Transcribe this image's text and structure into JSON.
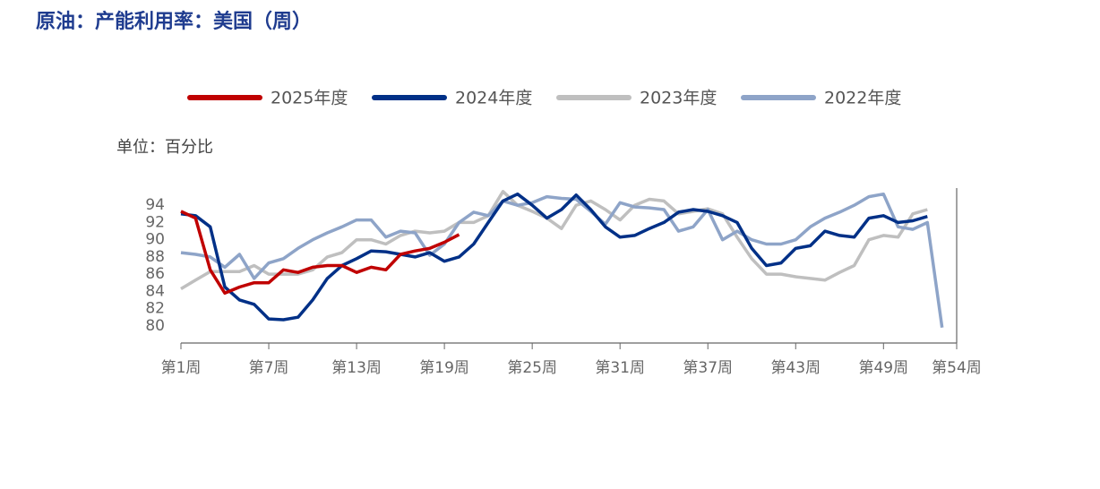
{
  "chart_data": {
    "type": "line",
    "title": "原油：产能利用率：美国（周）",
    "unit_label": "单位：百分比",
    "x": [
      1,
      2,
      3,
      4,
      5,
      6,
      7,
      8,
      9,
      10,
      11,
      12,
      13,
      14,
      15,
      16,
      17,
      18,
      19,
      20,
      21,
      22,
      23,
      24,
      25,
      26,
      27,
      28,
      29,
      30,
      31,
      32,
      33,
      34,
      35,
      36,
      37,
      38,
      39,
      40,
      41,
      42,
      43,
      44,
      45,
      46,
      47,
      48,
      49,
      50,
      51,
      52,
      53
    ],
    "xlim": [
      1,
      54
    ],
    "xticks": [
      {
        "value": 1,
        "label": "第1周"
      },
      {
        "value": 7,
        "label": "第7周"
      },
      {
        "value": 13,
        "label": "第13周"
      },
      {
        "value": 19,
        "label": "第19周"
      },
      {
        "value": 25,
        "label": "第25周"
      },
      {
        "value": 31,
        "label": "第31周"
      },
      {
        "value": 37,
        "label": "第37周"
      },
      {
        "value": 43,
        "label": "第43周"
      },
      {
        "value": 49,
        "label": "第49周"
      },
      {
        "value": 54,
        "label": "第54周"
      }
    ],
    "ylim": [
      78,
      96
    ],
    "yticks": [
      80,
      82,
      84,
      86,
      88,
      90,
      92,
      94
    ],
    "grid": false,
    "series": [
      {
        "name": "2025年度",
        "color": "#c00000",
        "values": [
          93.3,
          92.5,
          86.5,
          83.8,
          84.5,
          85.0,
          85.0,
          86.5,
          86.2,
          86.8,
          87.0,
          87.0,
          86.2,
          86.8,
          86.5,
          88.3,
          88.7,
          89.0,
          89.7,
          90.6,
          null,
          null,
          null,
          null,
          null,
          null,
          null,
          null,
          null,
          null,
          null,
          null,
          null,
          null,
          null,
          null,
          null,
          null,
          null,
          null,
          null,
          null,
          null,
          null,
          null,
          null,
          null,
          null,
          null,
          null,
          null,
          null,
          null
        ]
      },
      {
        "name": "2024年度",
        "color": "#003087",
        "values": [
          93.0,
          92.8,
          91.5,
          84.5,
          83.0,
          82.5,
          80.8,
          80.7,
          81.0,
          83.0,
          85.5,
          87.0,
          87.8,
          88.7,
          88.6,
          88.3,
          88.0,
          88.5,
          87.5,
          88.0,
          89.5,
          92.0,
          94.5,
          95.3,
          94.0,
          92.5,
          93.5,
          95.2,
          93.5,
          91.5,
          90.3,
          90.5,
          91.3,
          92.0,
          93.2,
          93.5,
          93.3,
          92.8,
          92.0,
          89.0,
          87.0,
          87.3,
          89.0,
          89.3,
          91.0,
          90.5,
          90.3,
          92.5,
          92.8,
          92.0,
          92.2,
          92.7,
          null
        ]
      },
      {
        "name": "2023年度",
        "color": "#bfbfbf",
        "values": [
          84.3,
          85.3,
          86.3,
          86.3,
          86.3,
          87.0,
          86.0,
          86.0,
          86.0,
          86.5,
          88.0,
          88.5,
          90.0,
          90.0,
          89.5,
          90.5,
          91.0,
          90.8,
          91.0,
          92.0,
          92.0,
          92.8,
          95.6,
          94.0,
          93.3,
          92.5,
          91.3,
          94.0,
          94.5,
          93.5,
          92.3,
          94.0,
          94.7,
          94.5,
          93.0,
          93.3,
          93.6,
          93.0,
          90.3,
          87.8,
          86.0,
          86.0,
          85.7,
          85.5,
          85.3,
          86.2,
          87.0,
          90.0,
          90.5,
          90.3,
          93.0,
          93.5,
          null
        ]
      },
      {
        "name": "2022年度",
        "color": "#8ea4c8",
        "values": [
          88.5,
          88.3,
          88.0,
          86.8,
          88.3,
          85.5,
          87.3,
          87.8,
          89.0,
          90.0,
          90.8,
          91.5,
          92.3,
          92.3,
          90.3,
          91.0,
          90.8,
          88.2,
          89.5,
          92.0,
          93.2,
          92.8,
          94.5,
          94.0,
          94.3,
          95.0,
          94.8,
          94.7,
          93.3,
          91.8,
          94.3,
          93.8,
          93.7,
          93.5,
          91.0,
          91.5,
          93.5,
          90.0,
          91.0,
          90.0,
          89.5,
          89.5,
          90.0,
          91.5,
          92.5,
          93.2,
          94.0,
          95.0,
          95.3,
          91.5,
          91.2,
          92.0,
          79.8
        ]
      }
    ]
  }
}
